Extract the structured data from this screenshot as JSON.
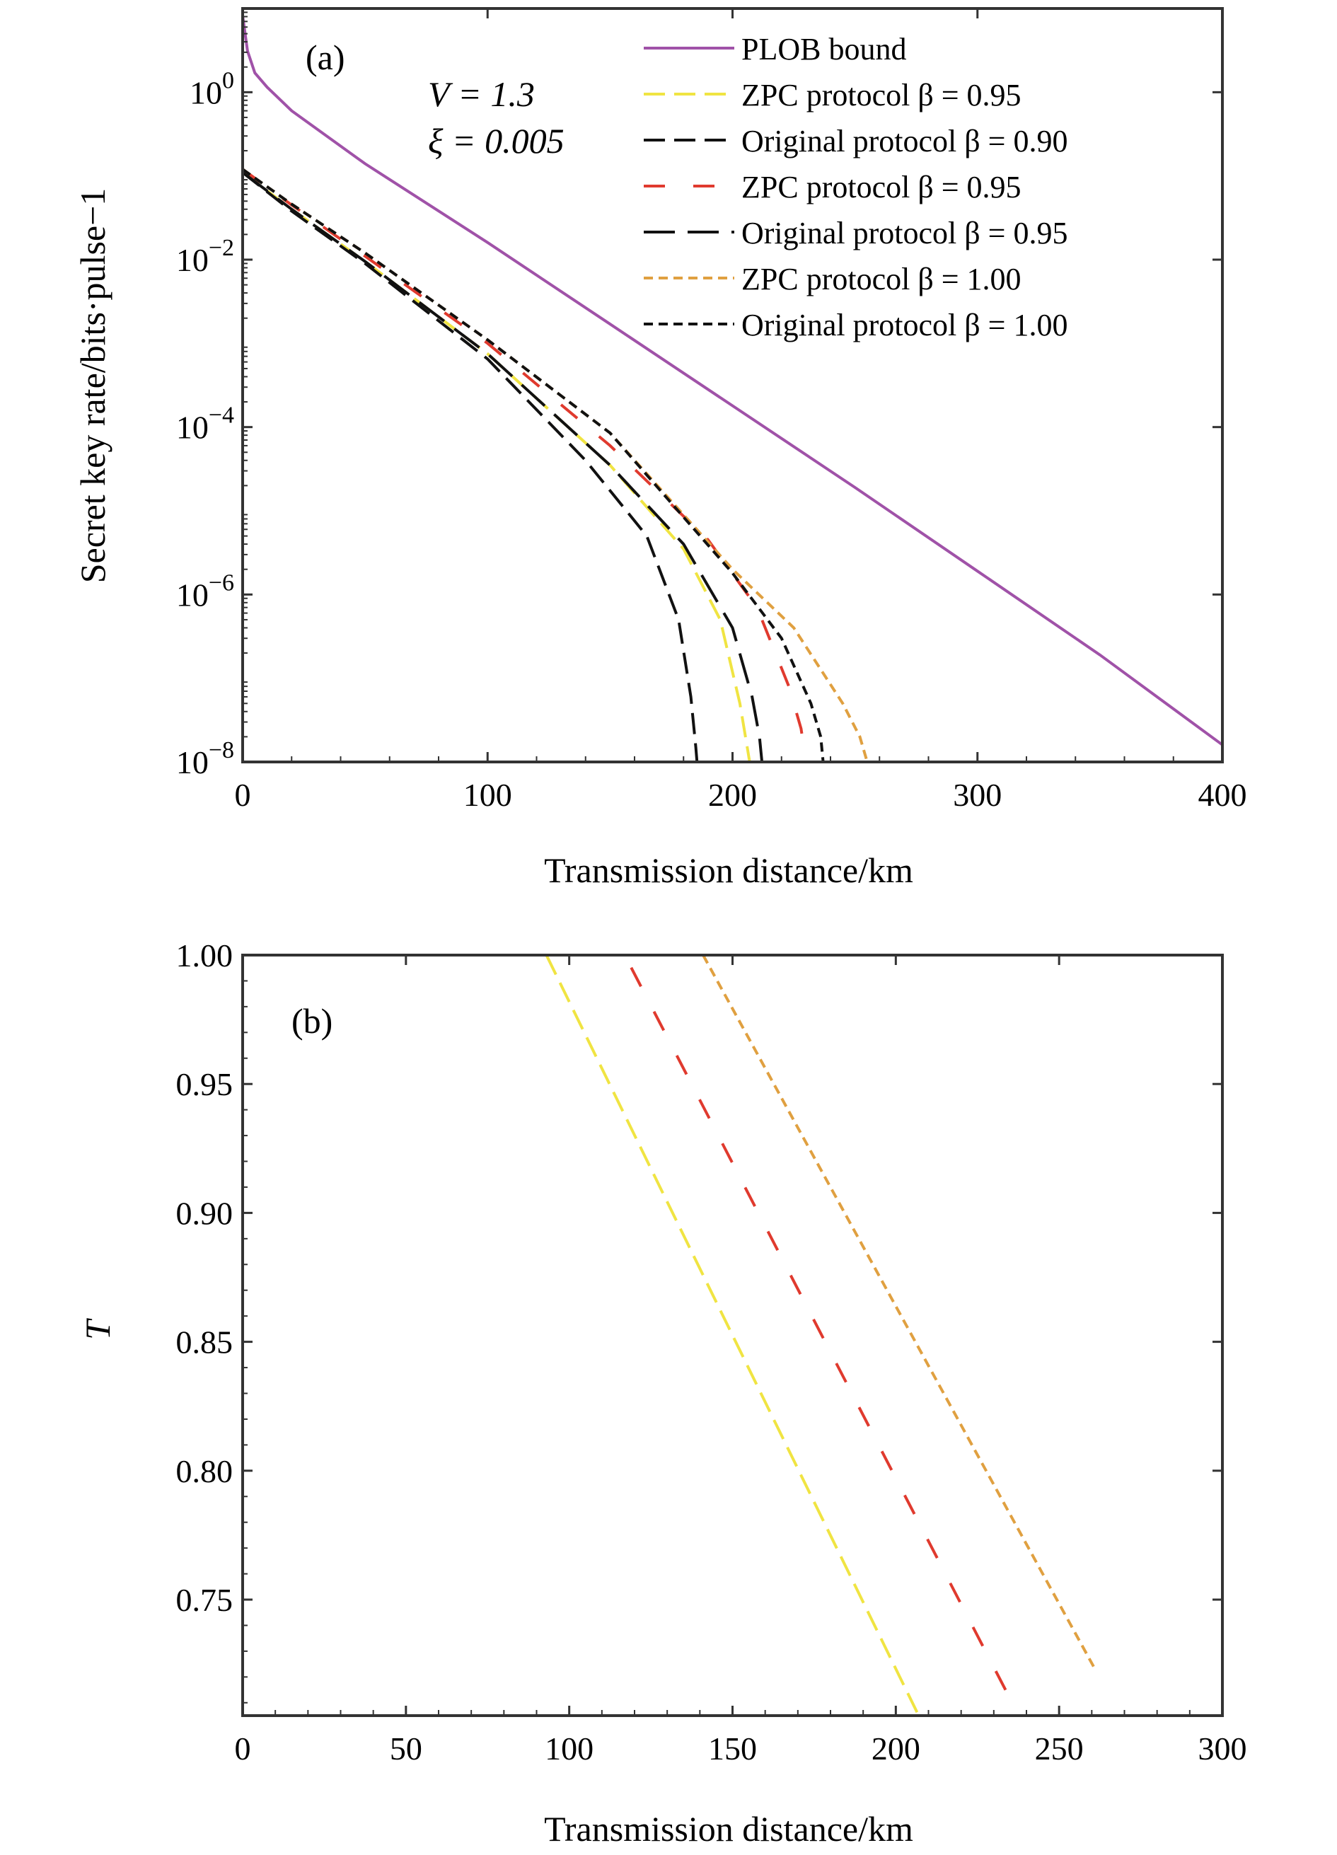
{
  "chart_data": [
    {
      "panel": "(a)",
      "type": "line",
      "xlabel": "Transmission distance/km",
      "ylabel": "Secret key rate/bits·pulse−1",
      "xlim": [
        0,
        400
      ],
      "ylim": [
        1e-08,
        10
      ],
      "yscale": "log",
      "xticks": [
        0,
        100,
        200,
        300,
        400
      ],
      "xtick_labels": [
        "0",
        "100",
        "200",
        "300",
        "400"
      ],
      "yticks": [
        1e-08,
        1e-06,
        0.0001,
        0.01,
        1
      ],
      "ytick_labels": [
        {
          "base": "10",
          "exp": "−8"
        },
        {
          "base": "10",
          "exp": "−6"
        },
        {
          "base": "10",
          "exp": "−4"
        },
        {
          "base": "10",
          "exp": "−2"
        },
        {
          "base": "10",
          "exp": "0"
        }
      ],
      "annotations": [
        "V = 1.3",
        "ξ = 0.005"
      ],
      "legend_position": "top-right",
      "series": [
        {
          "name": "PLOB bound",
          "color": "#a052a8",
          "dash": "solid",
          "x": [
            0,
            2,
            5,
            10,
            20,
            50,
            100,
            150,
            200,
            250,
            300,
            350,
            400
          ],
          "y": [
            8.2,
            3.1,
            1.7,
            1.15,
            0.6,
            0.14,
            0.016,
            0.0017,
            0.00018,
            1.9e-05,
            1.9e-06,
            1.9e-07,
            1.6e-08
          ]
        },
        {
          "name": "ZPC protocol β = 0.95",
          "color": "#f0e442",
          "dash": "long",
          "x": [
            0,
            20,
            50,
            100,
            150,
            180,
            195,
            203,
            206,
            207
          ],
          "y": [
            0.11,
            0.04,
            0.0095,
            0.00075,
            3.5e-05,
            3.5e-06,
            5e-07,
            5e-08,
            1.5e-08,
            1e-08
          ]
        },
        {
          "name": "Original protocol β = 0.90",
          "color": "#111111",
          "dash": "long",
          "x": [
            0,
            20,
            50,
            100,
            140,
            165,
            178,
            183,
            185,
            185.5
          ],
          "y": [
            0.11,
            0.038,
            0.009,
            0.00065,
            4e-05,
            5e-06,
            5e-07,
            6e-08,
            1.5e-08,
            1e-08
          ]
        },
        {
          "name": "ZPC protocol β = 0.95",
          "color": "#e03a2e",
          "dash": "longgap",
          "x": [
            0,
            20,
            50,
            100,
            150,
            190,
            210,
            223,
            228,
            230
          ],
          "y": [
            0.12,
            0.045,
            0.011,
            0.001,
            6e-05,
            4.5e-06,
            7e-07,
            8e-08,
            2.5e-08,
            1e-08
          ]
        },
        {
          "name": "Original protocol β = 0.95",
          "color": "#111111",
          "dash": "xlong",
          "x": [
            0,
            20,
            50,
            100,
            150,
            180,
            200,
            208,
            211,
            212
          ],
          "y": [
            0.11,
            0.04,
            0.0095,
            0.00075,
            3.5e-05,
            4e-06,
            4e-07,
            6e-08,
            2e-08,
            1e-08
          ]
        },
        {
          "name": "ZPC protocol β = 1.00",
          "color": "#e0a040",
          "dash": "short",
          "x": [
            0,
            20,
            50,
            100,
            150,
            200,
            225,
            245,
            252,
            255
          ],
          "y": [
            0.12,
            0.046,
            0.012,
            0.0011,
            8.5e-05,
            2e-06,
            4e-07,
            5e-08,
            2e-08,
            1e-08
          ]
        },
        {
          "name": "Original protocol β = 1.00",
          "color": "#111111",
          "dash": "short",
          "x": [
            0,
            20,
            50,
            100,
            150,
            200,
            220,
            232,
            236,
            237
          ],
          "y": [
            0.12,
            0.046,
            0.012,
            0.0011,
            8.5e-05,
            1.8e-06,
            3e-07,
            5e-08,
            2e-08,
            1e-08
          ]
        }
      ]
    },
    {
      "panel": "(b)",
      "type": "line",
      "xlabel": "Transmission distance/km",
      "ylabel": "T",
      "xlim": [
        0,
        300
      ],
      "ylim": [
        0.705,
        1.0
      ],
      "yscale": "linear",
      "xticks": [
        0,
        50,
        100,
        150,
        200,
        250,
        300
      ],
      "xtick_labels": [
        "0",
        "50",
        "100",
        "150",
        "200",
        "250",
        "300"
      ],
      "yticks": [
        0.75,
        0.8,
        0.85,
        0.9,
        0.95,
        1.0
      ],
      "ytick_labels": [
        "0.75",
        "0.80",
        "0.85",
        "0.90",
        "0.95",
        "1.00"
      ],
      "series": [
        {
          "name": "ZPC protocol β = 0.95",
          "color": "#f0e442",
          "dash": "long",
          "x": [
            0,
            93,
            207
          ],
          "y": [
            1.0,
            1.0,
            0.705
          ]
        },
        {
          "name": "ZPC protocol β = 0.95",
          "color": "#e03a2e",
          "dash": "longgap",
          "x": [
            0,
            117,
            234
          ],
          "y": [
            1.0,
            1.0,
            0.714
          ]
        },
        {
          "name": "ZPC protocol β = 1.00",
          "color": "#e0a040",
          "dash": "short",
          "x": [
            0,
            141,
            261
          ],
          "y": [
            1.0,
            1.0,
            0.723
          ]
        }
      ]
    }
  ]
}
